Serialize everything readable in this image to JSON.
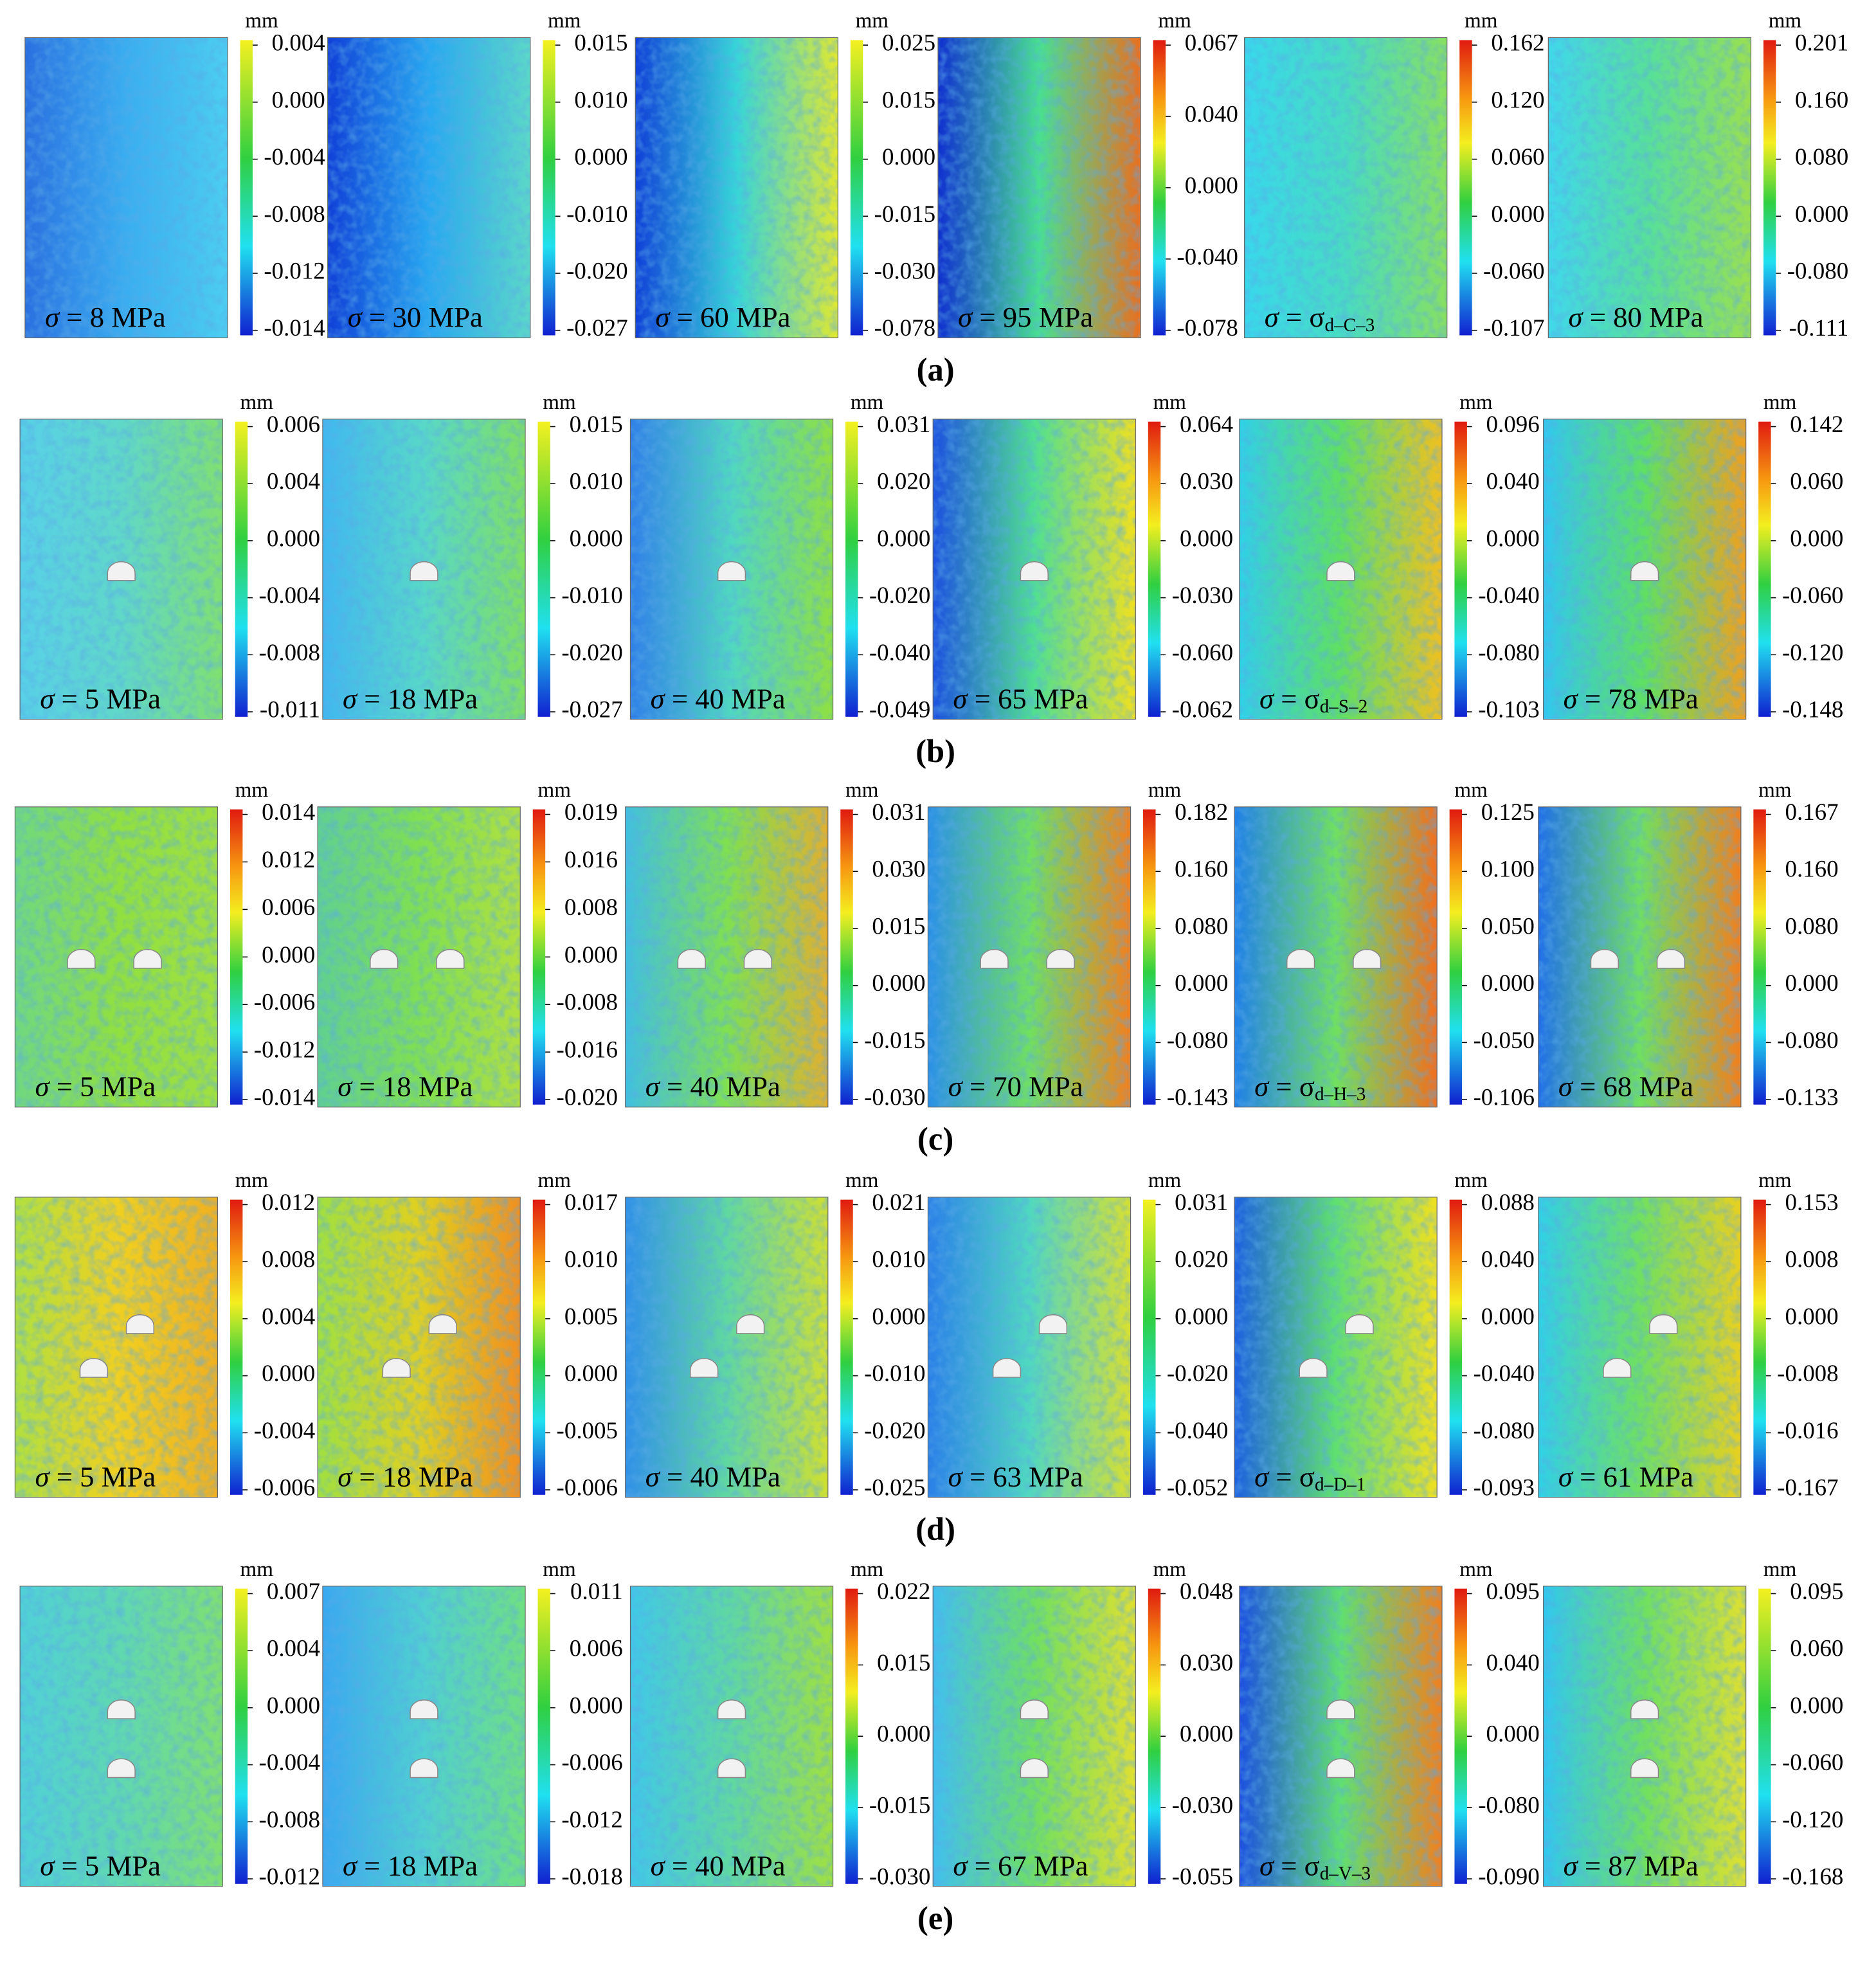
{
  "rows": [
    {
      "label": "(a)",
      "panels": [
        {
          "unit": "mm",
          "ticks": [
            "0.004",
            "0.000",
            "-0.004",
            "-0.008",
            "-0.012",
            "-0.014"
          ],
          "stress": {
            "symbol": "σ",
            "rest": "= 8 MPa"
          }
        },
        {
          "unit": "mm",
          "ticks": [
            "0.015",
            "0.010",
            "0.000",
            "-0.010",
            "-0.020",
            "-0.027"
          ],
          "stress": {
            "symbol": "σ",
            "rest": "= 30 MPa"
          }
        },
        {
          "unit": "mm",
          "ticks": [
            "0.025",
            "0.015",
            "0.000",
            "-0.015",
            "-0.030",
            "-0.078"
          ],
          "stress": {
            "symbol": "σ",
            "rest": "= 60 MPa"
          }
        },
        {
          "unit": "mm",
          "ticks": [
            "0.067",
            "0.040",
            "0.000",
            "-0.040",
            "-0.078"
          ],
          "stress": {
            "symbol": "σ",
            "rest": "= 95 MPa"
          }
        },
        {
          "unit": "mm",
          "ticks": [
            "0.162",
            "0.120",
            "0.060",
            "0.000",
            "-0.060",
            "-0.107"
          ],
          "stress": {
            "symbol": "σ",
            "rest": "= σ",
            "sub": "d–C–3"
          }
        },
        {
          "unit": "mm",
          "ticks": [
            "0.201",
            "0.160",
            "0.080",
            "0.000",
            "-0.080",
            "-0.111"
          ],
          "stress": {
            "symbol": "σ",
            "rest": "= 80 MPa"
          }
        }
      ]
    },
    {
      "label": "(b)",
      "panels": [
        {
          "unit": "mm",
          "ticks": [
            "0.006",
            "0.004",
            "0.000",
            "-0.004",
            "-0.008",
            "-0.011"
          ],
          "stress": {
            "symbol": "σ",
            "rest": "= 5 MPa"
          }
        },
        {
          "unit": "mm",
          "ticks": [
            "0.015",
            "0.010",
            "0.000",
            "-0.010",
            "-0.020",
            "-0.027"
          ],
          "stress": {
            "symbol": "σ",
            "rest": "= 18 MPa"
          }
        },
        {
          "unit": "mm",
          "ticks": [
            "0.031",
            "0.020",
            "0.000",
            "-0.020",
            "-0.040",
            "-0.049"
          ],
          "stress": {
            "symbol": "σ",
            "rest": "= 40 MPa"
          }
        },
        {
          "unit": "mm",
          "ticks": [
            "0.064",
            "0.030",
            "0.000",
            "-0.030",
            "-0.060",
            "-0.062"
          ],
          "stress": {
            "symbol": "σ",
            "rest": "= 65 MPa"
          }
        },
        {
          "unit": "mm",
          "ticks": [
            "0.096",
            "0.040",
            "0.000",
            "-0.040",
            "-0.080",
            "-0.103"
          ],
          "stress": {
            "symbol": "σ",
            "rest": "= σ",
            "sub": "d–S–2"
          }
        },
        {
          "unit": "mm",
          "ticks": [
            "0.142",
            "0.060",
            "0.000",
            "-0.060",
            "-0.120",
            "-0.148"
          ],
          "stress": {
            "symbol": "σ",
            "rest": "= 78 MPa"
          }
        }
      ]
    },
    {
      "label": "(c)",
      "panels": [
        {
          "unit": "mm",
          "ticks": [
            "0.014",
            "0.012",
            "0.006",
            "0.000",
            "-0.006",
            "-0.012",
            "-0.014"
          ],
          "stress": {
            "symbol": "σ",
            "rest": "= 5 MPa"
          }
        },
        {
          "unit": "mm",
          "ticks": [
            "0.019",
            "0.016",
            "0.008",
            "0.000",
            "-0.008",
            "-0.016",
            "-0.020"
          ],
          "stress": {
            "symbol": "σ",
            "rest": "= 18 MPa"
          }
        },
        {
          "unit": "mm",
          "ticks": [
            "0.031",
            "0.030",
            "0.015",
            "0.000",
            "-0.015",
            "-0.030"
          ],
          "stress": {
            "symbol": "σ",
            "rest": "= 40 MPa"
          }
        },
        {
          "unit": "mm",
          "ticks": [
            "0.182",
            "0.160",
            "0.080",
            "0.000",
            "-0.080",
            "-0.143"
          ],
          "stress": {
            "symbol": "σ",
            "rest": "= 70 MPa"
          }
        },
        {
          "unit": "mm",
          "ticks": [
            "0.125",
            "0.100",
            "0.050",
            "0.000",
            "-0.050",
            "-0.106"
          ],
          "stress": {
            "symbol": "σ",
            "rest": "= σ",
            "sub": "d–H–3"
          }
        },
        {
          "unit": "mm",
          "ticks": [
            "0.167",
            "0.160",
            "0.080",
            "0.000",
            "-0.080",
            "-0.133"
          ],
          "stress": {
            "symbol": "σ",
            "rest": "= 68 MPa"
          }
        }
      ]
    },
    {
      "label": "(d)",
      "panels": [
        {
          "unit": "mm",
          "ticks": [
            "0.012",
            "0.008",
            "0.004",
            "0.000",
            "-0.004",
            "-0.006"
          ],
          "stress": {
            "symbol": "σ",
            "rest": "= 5 MPa"
          }
        },
        {
          "unit": "mm",
          "ticks": [
            "0.017",
            "0.010",
            "0.005",
            "0.000",
            "-0.005",
            "-0.006"
          ],
          "stress": {
            "symbol": "σ",
            "rest": "= 18 MPa"
          }
        },
        {
          "unit": "mm",
          "ticks": [
            "0.021",
            "0.010",
            "0.000",
            "-0.010",
            "-0.020",
            "-0.025"
          ],
          "stress": {
            "symbol": "σ",
            "rest": "= 40 MPa"
          }
        },
        {
          "unit": "mm",
          "ticks": [
            "0.031",
            "0.020",
            "0.000",
            "-0.020",
            "-0.040",
            "-0.052"
          ],
          "stress": {
            "symbol": "σ",
            "rest": "= 63 MPa"
          }
        },
        {
          "unit": "mm",
          "ticks": [
            "0.088",
            "0.040",
            "0.000",
            "-0.040",
            "-0.080",
            "-0.093"
          ],
          "stress": {
            "symbol": "σ",
            "rest": "= σ",
            "sub": "d–D–1"
          }
        },
        {
          "unit": "mm",
          "ticks": [
            "0.153",
            "0.008",
            "0.000",
            "-0.008",
            "-0.016",
            "-0.167"
          ],
          "stress": {
            "symbol": "σ",
            "rest": "= 61 MPa"
          }
        }
      ]
    },
    {
      "label": "(e)",
      "panels": [
        {
          "unit": "mm",
          "ticks": [
            "0.007",
            "0.004",
            "0.000",
            "-0.004",
            "-0.008",
            "-0.012"
          ],
          "stress": {
            "symbol": "σ",
            "rest": "= 5 MPa"
          }
        },
        {
          "unit": "mm",
          "ticks": [
            "0.011",
            "0.006",
            "0.000",
            "-0.006",
            "-0.012",
            "-0.018"
          ],
          "stress": {
            "symbol": "σ",
            "rest": "= 18 MPa"
          }
        },
        {
          "unit": "mm",
          "ticks": [
            "0.022",
            "0.015",
            "0.000",
            "-0.015",
            "-0.030"
          ],
          "stress": {
            "symbol": "σ",
            "rest": "= 40 MPa"
          }
        },
        {
          "unit": "mm",
          "ticks": [
            "0.048",
            "0.030",
            "0.000",
            "-0.030",
            "-0.055"
          ],
          "stress": {
            "symbol": "σ",
            "rest": "= 67 MPa"
          }
        },
        {
          "unit": "mm",
          "ticks": [
            "0.095",
            "0.040",
            "0.000",
            "-0.080",
            "-0.090"
          ],
          "stress": {
            "symbol": "σ",
            "rest": "= σ",
            "sub": "d–V–3"
          }
        },
        {
          "unit": "mm",
          "ticks": [
            "0.095",
            "0.060",
            "0.000",
            "-0.060",
            "-0.120",
            "-0.168"
          ],
          "stress": {
            "symbol": "σ",
            "rest": "= 87 MPa"
          }
        }
      ]
    }
  ]
}
